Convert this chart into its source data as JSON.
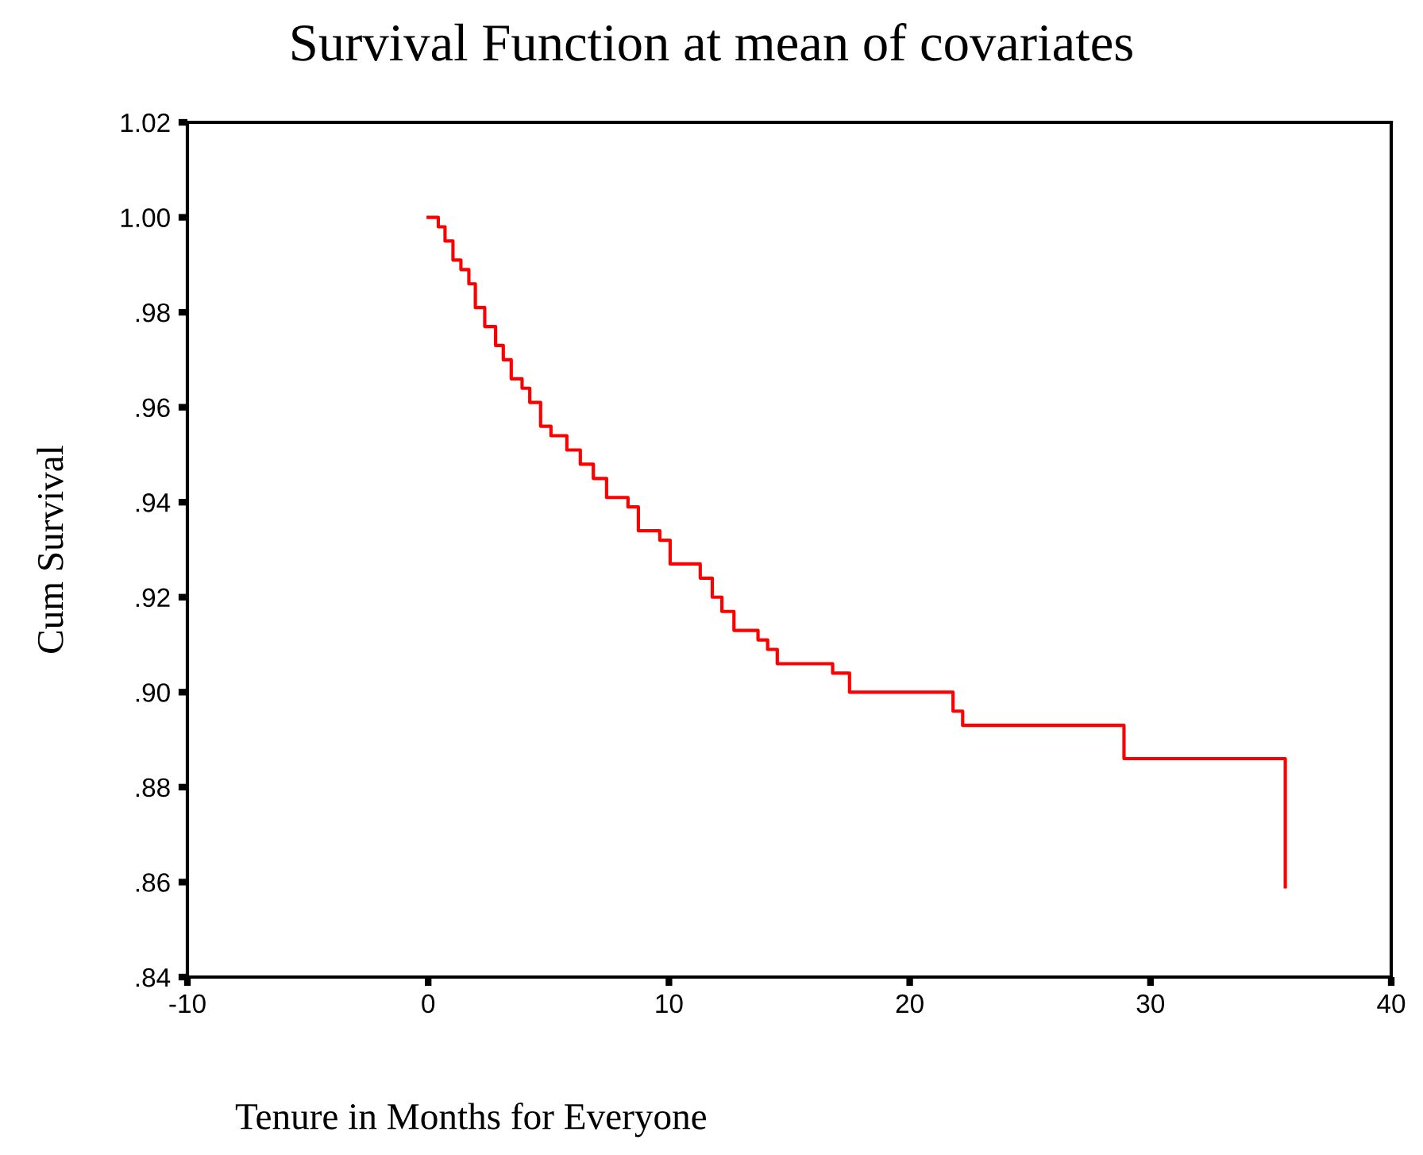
{
  "chart_data": {
    "type": "step",
    "title": "Survival Function at mean of covariates",
    "xlabel": "Tenure in Months for Everyone",
    "ylabel": "Cum Survival",
    "series": [
      {
        "color": "#ff0000",
        "x": [
          0,
          0.42,
          0.7,
          1.03,
          1.36,
          1.69,
          1.96,
          2.35,
          2.8,
          3.12,
          3.45,
          3.9,
          4.22,
          4.67,
          5.1,
          5.76,
          6.32,
          6.86,
          7.41,
          8.3,
          8.73,
          9.62,
          10.05,
          11.3,
          11.8,
          12.2,
          12.7,
          13.7,
          14.1,
          14.5,
          16.8,
          17.5,
          21.8,
          22.2,
          28.9,
          35.6
        ],
        "values": [
          1.0,
          0.998,
          0.995,
          0.991,
          0.989,
          0.986,
          0.981,
          0.977,
          0.973,
          0.97,
          0.966,
          0.964,
          0.961,
          0.956,
          0.954,
          0.951,
          0.948,
          0.945,
          0.941,
          0.939,
          0.934,
          0.932,
          0.927,
          0.924,
          0.92,
          0.917,
          0.913,
          0.911,
          0.909,
          0.906,
          0.904,
          0.9,
          0.896,
          0.893,
          0.886,
          0.859
        ]
      }
    ],
    "xlim": [
      -10,
      40
    ],
    "xticks": [
      -10,
      0,
      10,
      20,
      30,
      40
    ],
    "ylim": [
      0.84,
      1.02
    ],
    "yticks": [
      {
        "value": 0.84,
        "label": ".84"
      },
      {
        "value": 0.86,
        "label": ".86"
      },
      {
        "value": 0.88,
        "label": ".88"
      },
      {
        "value": 0.9,
        "label": ".90"
      },
      {
        "value": 0.92,
        "label": ".92"
      },
      {
        "value": 0.94,
        "label": ".94"
      },
      {
        "value": 0.96,
        "label": ".96"
      },
      {
        "value": 0.98,
        "label": ".98"
      },
      {
        "value": 1.0,
        "label": "1.00"
      },
      {
        "value": 1.02,
        "label": "1.02"
      }
    ],
    "grid": false,
    "legend": false,
    "marker": "none",
    "line_style": "solid"
  }
}
